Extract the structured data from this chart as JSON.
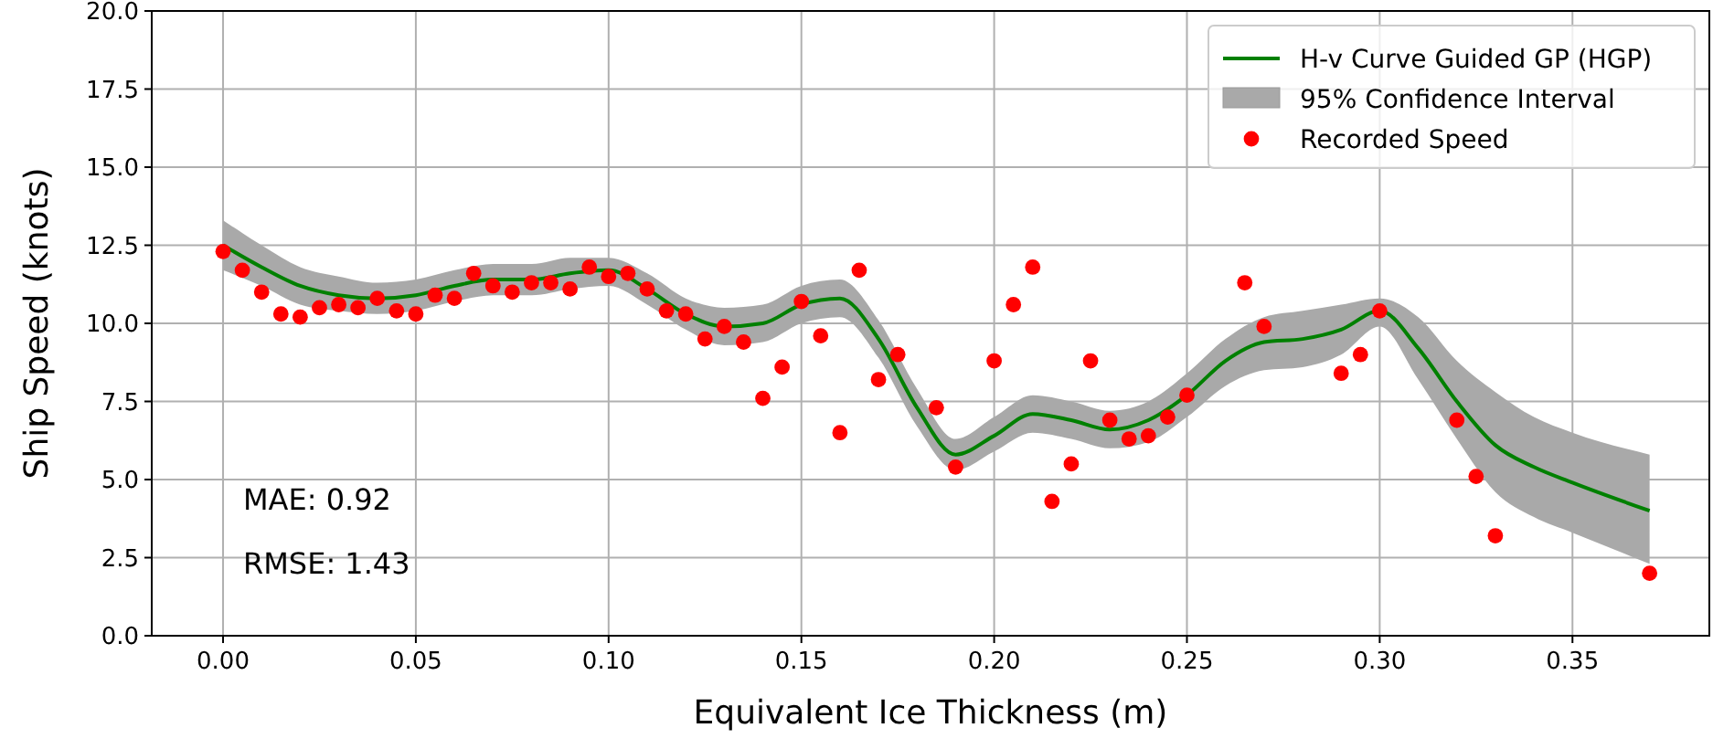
{
  "chart_data": {
    "type": "scatter",
    "xlabel": "Equivalent Ice Thickness (m)",
    "ylabel": "Ship Speed (knots)",
    "xlim": [
      -0.0185,
      0.3855
    ],
    "xticks": [
      {
        "value": 0,
        "label": "0.00"
      },
      {
        "value": 0.05,
        "label": "0.05"
      },
      {
        "value": 0.1,
        "label": "0.10"
      },
      {
        "value": 0.15,
        "label": "0.15"
      },
      {
        "value": 0.2,
        "label": "0.20"
      },
      {
        "value": 0.25,
        "label": "0.25"
      },
      {
        "value": 0.3,
        "label": "0.30"
      },
      {
        "value": 0.35,
        "label": "0.35"
      }
    ],
    "ylim": [
      0,
      20
    ],
    "yticks": [
      {
        "value": 0,
        "label": "0.0"
      },
      {
        "value": 2.5,
        "label": "2.5"
      },
      {
        "value": 5,
        "label": "5.0"
      },
      {
        "value": 7.5,
        "label": "7.5"
      },
      {
        "value": 10,
        "label": "10.0"
      },
      {
        "value": 12.5,
        "label": "12.5"
      },
      {
        "value": 15,
        "label": "15.0"
      },
      {
        "value": 17.5,
        "label": "17.5"
      },
      {
        "value": 20,
        "label": "20.0"
      }
    ],
    "grid": true,
    "legend": "top right",
    "annotations": [
      "MAE: 0.92",
      "RMSE: 1.43"
    ],
    "series": [
      {
        "type": "line",
        "name": "H-v Curve Guided GP (HGP)",
        "color": "#008000",
        "line_style": "solid",
        "marker": "none",
        "x": [
          0,
          0.01,
          0.02,
          0.03,
          0.04,
          0.05,
          0.06,
          0.07,
          0.08,
          0.09,
          0.1,
          0.11,
          0.12,
          0.13,
          0.14,
          0.15,
          0.16,
          0.17,
          0.18,
          0.19,
          0.2,
          0.21,
          0.22,
          0.23,
          0.24,
          0.25,
          0.26,
          0.27,
          0.28,
          0.29,
          0.3,
          0.31,
          0.32,
          0.33,
          0.34,
          0.35,
          0.37
        ],
        "values": [
          12.5,
          11.8,
          11.2,
          10.9,
          10.8,
          10.9,
          11.2,
          11.4,
          11.4,
          11.6,
          11.7,
          11.1,
          10.3,
          9.9,
          10.0,
          10.6,
          10.8,
          9.5,
          7.3,
          5.8,
          6.4,
          7.1,
          6.9,
          6.6,
          6.9,
          7.7,
          8.8,
          9.4,
          9.5,
          9.8,
          10.4,
          9.2,
          7.5,
          6.1,
          5.4,
          4.9,
          4.0
        ],
        "lower": [
          11.7,
          11.2,
          10.6,
          10.4,
          10.3,
          10.4,
          10.7,
          10.9,
          10.9,
          11.1,
          11.2,
          10.6,
          9.8,
          9.3,
          9.4,
          10.0,
          10.2,
          8.9,
          6.7,
          5.3,
          5.9,
          6.5,
          6.3,
          6.0,
          6.2,
          7.0,
          8.0,
          8.5,
          8.6,
          9.0,
          9.9,
          8.2,
          6.3,
          4.6,
          3.8,
          3.3,
          2.3
        ],
        "upper": [
          13.3,
          12.5,
          11.8,
          11.5,
          11.3,
          11.4,
          11.7,
          11.9,
          11.9,
          12.1,
          12.1,
          11.6,
          10.8,
          10.5,
          10.6,
          11.2,
          11.4,
          10.1,
          7.9,
          6.3,
          7.0,
          7.7,
          7.5,
          7.2,
          7.5,
          8.4,
          9.5,
          10.2,
          10.4,
          10.6,
          10.8,
          10.2,
          8.8,
          7.8,
          7.0,
          6.5,
          5.8
        ]
      },
      {
        "type": "area",
        "name": "95% Confidence Interval",
        "color": "#a9a9a9"
      },
      {
        "name": "Recorded Speed",
        "color": "#ff0000",
        "marker": "circle",
        "x": [
          0,
          0.005,
          0.01,
          0.015,
          0.02,
          0.025,
          0.03,
          0.035,
          0.04,
          0.045,
          0.05,
          0.055,
          0.06,
          0.065,
          0.07,
          0.075,
          0.08,
          0.085,
          0.09,
          0.095,
          0.1,
          0.105,
          0.11,
          0.115,
          0.12,
          0.125,
          0.13,
          0.135,
          0.14,
          0.145,
          0.15,
          0.155,
          0.16,
          0.165,
          0.17,
          0.175,
          0.185,
          0.19,
          0.2,
          0.205,
          0.21,
          0.215,
          0.22,
          0.225,
          0.23,
          0.235,
          0.24,
          0.245,
          0.25,
          0.265,
          0.27,
          0.29,
          0.295,
          0.3,
          0.32,
          0.325,
          0.33,
          0.37
        ],
        "values": [
          12.3,
          11.7,
          11.0,
          10.3,
          10.2,
          10.5,
          10.6,
          10.5,
          10.8,
          10.4,
          10.3,
          10.9,
          10.8,
          11.6,
          11.2,
          11.0,
          11.3,
          11.3,
          11.1,
          11.8,
          11.5,
          11.6,
          11.1,
          10.4,
          10.3,
          9.5,
          9.9,
          9.4,
          7.6,
          8.6,
          10.7,
          9.6,
          6.5,
          11.7,
          8.2,
          9.0,
          7.3,
          5.4,
          8.8,
          10.6,
          11.8,
          4.3,
          5.5,
          8.8,
          6.9,
          6.3,
          6.4,
          7.0,
          7.7,
          11.3,
          9.9,
          8.4,
          9.0,
          10.4,
          6.9,
          5.1,
          3.2,
          2.0
        ]
      }
    ]
  }
}
